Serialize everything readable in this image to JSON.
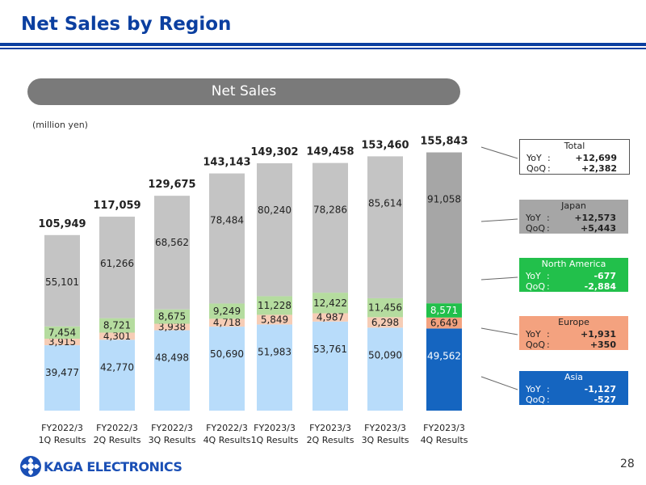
{
  "page": {
    "title": "Net Sales by Region",
    "banner": "Net Sales",
    "unit": "(million yen)",
    "page_number": "28"
  },
  "logo": {
    "text": "KAGA ELECTRONICS"
  },
  "colors": {
    "title_blue": "#0b3fa0",
    "asia": "#b8dcfa",
    "asia_highlight": "#1565c0",
    "europe": "#f6cdb6",
    "europe_highlight": "#f4a27f",
    "north_america": "#b5dc9f",
    "north_america_highlight": "#22c04b",
    "japan": "#c4c4c4",
    "japan_highlight": "#a6a6a6"
  },
  "panels": {
    "total": {
      "title": "Total",
      "yoy_label": "YoY",
      "yoy": "+12,699",
      "qoq_label": "QoQ",
      "qoq": "+2,382"
    },
    "japan": {
      "title": "Japan",
      "yoy_label": "YoY",
      "yoy": "+12,573",
      "qoq_label": "QoQ",
      "qoq": "+5,443"
    },
    "north_america": {
      "title": "North America",
      "yoy_label": "YoY",
      "yoy": "-677",
      "qoq_label": "QoQ",
      "qoq": "-2,884"
    },
    "europe": {
      "title": "Europe",
      "yoy_label": "YoY",
      "yoy": "+1,931",
      "qoq_label": "QoQ",
      "qoq": "+350"
    },
    "asia": {
      "title": "Asia",
      "yoy_label": "YoY",
      "yoy": "-1,127",
      "qoq_label": "QoQ",
      "qoq": "-527"
    }
  },
  "chart_data": {
    "type": "bar",
    "stacked": true,
    "categories": [
      "FY2022/3\n1Q Results",
      "FY2022/3\n2Q Results",
      "FY2022/3\n3Q Results",
      "FY2022/3\n4Q Results",
      "FY2023/3\n1Q Results",
      "FY2023/3\n2Q Results",
      "FY2023/3\n3Q Results",
      "FY2023/3\n4Q Results"
    ],
    "series": [
      {
        "name": "Asia",
        "values": [
          39477,
          42770,
          48498,
          50690,
          51983,
          53761,
          50090,
          49562
        ]
      },
      {
        "name": "Europe",
        "values": [
          3915,
          4301,
          3938,
          4718,
          5849,
          4987,
          6298,
          6649
        ]
      },
      {
        "name": "North America",
        "values": [
          7454,
          8721,
          8675,
          9249,
          11228,
          12422,
          11456,
          8571
        ]
      },
      {
        "name": "Japan",
        "values": [
          55101,
          61266,
          68562,
          78484,
          80240,
          78286,
          85614,
          91058
        ]
      }
    ],
    "totals": [
      105949,
      117059,
      129675,
      143143,
      149302,
      149458,
      153460,
      155843
    ],
    "value_labels": {
      "Asia": [
        "39,477",
        "42,770",
        "48,498",
        "50,690",
        "51,983",
        "53,761",
        "50,090",
        "49,562"
      ],
      "Europe": [
        "3,915",
        "4,301",
        "3,938",
        "4,718",
        "5,849",
        "4,987",
        "6,298",
        "6,649"
      ],
      "North America": [
        "7,454",
        "8,721",
        "8,675",
        "9,249",
        "11,228",
        "12,422",
        "11,456",
        "8,571"
      ],
      "Japan": [
        "55,101",
        "61,266",
        "68,562",
        "78,484",
        "80,240",
        "78,286",
        "85,614",
        "91,058"
      ]
    },
    "total_labels": [
      "105,949",
      "117,059",
      "129,675",
      "143,143",
      "149,302",
      "149,458",
      "153,460",
      "155,843"
    ],
    "highlighted_category": "FY2023/3\n4Q Results",
    "ylim": [
      0,
      160000
    ],
    "grid": false,
    "legend": "right"
  }
}
